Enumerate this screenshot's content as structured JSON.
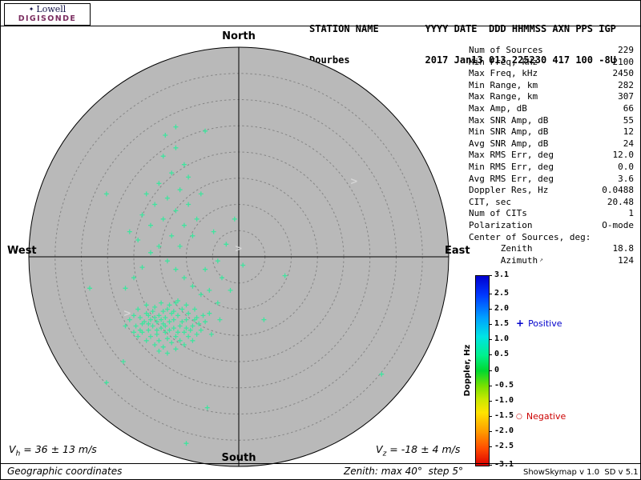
{
  "logo": {
    "name": "Lowell",
    "product": "DIGISONDE",
    "diamond": "✦"
  },
  "header": {
    "columns_line": "STATION NAME        YYYY DATE  DDD HHMMSS AXN PPS IGP",
    "values_line": "Dourbes             2017 Jan13 013 225230 417 100 -8U"
  },
  "compass": {
    "north": "North",
    "south": "South",
    "east": "East",
    "west": "West"
  },
  "stats": {
    "rows": [
      {
        "label": "Num of Sources",
        "value": "229"
      },
      {
        "label": "Min Freq, kHz",
        "value": "2100"
      },
      {
        "label": "Max Freq, kHz",
        "value": "2450"
      },
      {
        "label": "Min Range, km",
        "value": "282"
      },
      {
        "label": "Max Range, km",
        "value": "307"
      },
      {
        "label": "Max Amp, dB",
        "value": "66"
      },
      {
        "label": "Max SNR Amp, dB",
        "value": "55"
      },
      {
        "label": "Min SNR Amp, dB",
        "value": "12"
      },
      {
        "label": "Avg SNR Amp, dB",
        "value": "24"
      },
      {
        "label": "Max RMS Err, deg",
        "value": "12.0"
      },
      {
        "label": "Min RMS Err, deg",
        "value": "0.0"
      },
      {
        "label": "Avg RMS Err, deg",
        "value": "3.6"
      },
      {
        "label": "Doppler Res, Hz",
        "value": "0.0488"
      },
      {
        "label": "CIT, sec",
        "value": "20.48"
      },
      {
        "label": "Num of CITs",
        "value": "1"
      },
      {
        "label": "Polarization",
        "value": "O-mode"
      },
      {
        "label": "Center of Sources, deg:",
        "value": ""
      },
      {
        "label": "      Zenith",
        "value": "18.8"
      },
      {
        "label": "      Azimuth",
        "value": "124",
        "arrow": "↗"
      }
    ]
  },
  "colorbar": {
    "axis_label": "Doppler, Hz",
    "max": 3.1,
    "min": -3.1,
    "ticks": [
      {
        "value": 3.1,
        "label": "3.1"
      },
      {
        "value": 2.5,
        "label": "2.5"
      },
      {
        "value": 2.0,
        "label": "2.0"
      },
      {
        "value": 1.5,
        "label": "1.5"
      },
      {
        "value": 1.0,
        "label": "1.0"
      },
      {
        "value": 0.5,
        "label": "0.5"
      },
      {
        "value": 0.0,
        "label": "0"
      },
      {
        "value": -0.5,
        "label": "-0.5"
      },
      {
        "value": -1.0,
        "label": "-1.0"
      },
      {
        "value": -1.5,
        "label": "-1.5"
      },
      {
        "value": -2.0,
        "label": "-2.0"
      },
      {
        "value": -2.5,
        "label": "-2.5"
      },
      {
        "value": -3.1,
        "label": "-3.1"
      }
    ]
  },
  "legend": {
    "positive_marker": "+",
    "positive_label": "Positive",
    "positive_color": "#0000cc",
    "negative_marker": "○",
    "negative_label": "Negative",
    "negative_color": "#cc0000"
  },
  "footer": {
    "vh_symbol": "V",
    "vh_sub": "h",
    "vh_text": " = 36 ± 13 m/s",
    "vz_symbol": "V",
    "vz_sub": "z",
    "vz_text": " = -18 ± 4 m/s",
    "coordinates": "Geographic coordinates",
    "zenith_note": "Zenith: max 40°  step 5°",
    "credit": "ShowSkymap v 1.0  SD v 5.1"
  },
  "chart_data": {
    "type": "scatter",
    "projection": "polar skymap; points as [x,y] fractions of outer radius, x=east+, y=south+",
    "zenith_rings_deg": [
      5,
      10,
      15,
      20,
      25,
      30,
      35,
      40
    ],
    "zenith_max_deg": 40,
    "zenith_step_deg": 5,
    "doppler_color_range_hz": [
      -3.1,
      3.1
    ],
    "num_sources": 229,
    "center_of_sources": {
      "zenith_deg": 18.8,
      "azimuth_deg": 124
    },
    "marker": "+",
    "marker_color": "#3fe49e",
    "points": [
      [
        -0.3,
        0.22
      ],
      [
        -0.34,
        0.25
      ],
      [
        -0.38,
        0.28
      ],
      [
        -0.42,
        0.3
      ],
      [
        -0.36,
        0.32
      ],
      [
        -0.32,
        0.27
      ],
      [
        -0.4,
        0.24
      ],
      [
        -0.44,
        0.27
      ],
      [
        -0.37,
        0.22
      ],
      [
        -0.33,
        0.31
      ],
      [
        -0.29,
        0.28
      ],
      [
        -0.41,
        0.33
      ],
      [
        -0.45,
        0.31
      ],
      [
        -0.35,
        0.36
      ],
      [
        -0.31,
        0.34
      ],
      [
        -0.39,
        0.37
      ],
      [
        -0.43,
        0.35
      ],
      [
        -0.27,
        0.25
      ],
      [
        -0.25,
        0.3
      ],
      [
        -0.28,
        0.33
      ],
      [
        -0.47,
        0.29
      ],
      [
        -0.49,
        0.33
      ],
      [
        -0.46,
        0.36
      ],
      [
        -0.38,
        0.4
      ],
      [
        -0.34,
        0.39
      ],
      [
        -0.3,
        0.38
      ],
      [
        -0.26,
        0.36
      ],
      [
        -0.22,
        0.33
      ],
      [
        -0.24,
        0.27
      ],
      [
        -0.2,
        0.29
      ],
      [
        -0.36,
        0.26
      ],
      [
        -0.4,
        0.29
      ],
      [
        -0.44,
        0.23
      ],
      [
        -0.48,
        0.25
      ],
      [
        -0.52,
        0.3
      ],
      [
        -0.5,
        0.36
      ],
      [
        -0.42,
        0.38
      ],
      [
        -0.37,
        0.34
      ],
      [
        -0.33,
        0.23
      ],
      [
        -0.29,
        0.21
      ],
      [
        -0.25,
        0.23
      ],
      [
        -0.21,
        0.25
      ],
      [
        -0.35,
        0.29
      ],
      [
        -0.39,
        0.31
      ],
      [
        -0.43,
        0.28
      ],
      [
        -0.31,
        0.3
      ],
      [
        -0.27,
        0.31
      ],
      [
        -0.23,
        0.35
      ],
      [
        -0.19,
        0.32
      ],
      [
        -0.17,
        0.28
      ],
      [
        -0.36,
        0.43
      ],
      [
        -0.32,
        0.41
      ],
      [
        -0.28,
        0.4
      ],
      [
        -0.24,
        0.38
      ],
      [
        -0.4,
        0.42
      ],
      [
        -0.44,
        0.4
      ],
      [
        -0.48,
        0.38
      ],
      [
        -0.3,
        0.44
      ],
      [
        -0.26,
        0.42
      ],
      [
        -0.22,
        0.4
      ],
      [
        -0.34,
        0.46
      ],
      [
        -0.38,
        0.45
      ],
      [
        -0.18,
        0.35
      ],
      [
        -0.16,
        0.31
      ],
      [
        -0.14,
        0.27
      ],
      [
        -0.2,
        0.37
      ],
      [
        -0.46,
        0.32
      ],
      [
        -0.5,
        0.28
      ],
      [
        -0.54,
        0.33
      ],
      [
        -0.41,
        0.26
      ],
      [
        -0.37,
        0.3
      ],
      [
        -0.33,
        0.35
      ],
      [
        -0.29,
        0.36
      ],
      [
        -0.25,
        0.34
      ],
      [
        -0.21,
        0.3
      ],
      [
        -0.35,
        0.33
      ],
      [
        -0.39,
        0.35
      ],
      [
        -0.43,
        0.32
      ],
      [
        -0.47,
        0.35
      ],
      [
        -0.31,
        0.26
      ],
      [
        -0.28,
        -0.05
      ],
      [
        -0.32,
        -0.1
      ],
      [
        -0.26,
        -0.15
      ],
      [
        -0.36,
        -0.18
      ],
      [
        -0.3,
        -0.22
      ],
      [
        -0.24,
        -0.25
      ],
      [
        -0.34,
        -0.28
      ],
      [
        -0.28,
        -0.32
      ],
      [
        -0.38,
        -0.35
      ],
      [
        -0.32,
        -0.4
      ],
      [
        -0.26,
        -0.44
      ],
      [
        -0.36,
        -0.48
      ],
      [
        -0.3,
        -0.52
      ],
      [
        -0.4,
        -0.25
      ],
      [
        -0.44,
        -0.3
      ],
      [
        -0.42,
        -0.15
      ],
      [
        -0.46,
        -0.2
      ],
      [
        -0.22,
        -0.1
      ],
      [
        -0.2,
        -0.18
      ],
      [
        -0.18,
        -0.3
      ],
      [
        -0.24,
        -0.38
      ],
      [
        -0.35,
        -0.58
      ],
      [
        -0.3,
        -0.62
      ],
      [
        -0.48,
        -0.08
      ],
      [
        -0.52,
        -0.12
      ],
      [
        -0.38,
        -0.05
      ],
      [
        -0.42,
        -0.02
      ],
      [
        -0.34,
        0.02
      ],
      [
        -0.3,
        0.06
      ],
      [
        -0.26,
        0.1
      ],
      [
        -0.22,
        0.14
      ],
      [
        -0.18,
        0.18
      ],
      [
        -0.46,
        0.05
      ],
      [
        -0.5,
        0.1
      ],
      [
        -0.54,
        0.15
      ],
      [
        -0.1,
        0.02
      ],
      [
        -0.06,
        -0.06
      ],
      [
        -0.12,
        -0.12
      ],
      [
        -0.08,
        0.1
      ],
      [
        -0.14,
        0.16
      ],
      [
        -0.1,
        0.22
      ],
      [
        -0.04,
        0.16
      ],
      [
        -0.16,
        0.06
      ],
      [
        -0.02,
        -0.18
      ],
      [
        0.02,
        0.04
      ],
      [
        -0.13,
        0.37
      ],
      [
        -0.09,
        0.3
      ],
      [
        0.68,
        0.56
      ],
      [
        -0.63,
        0.6
      ],
      [
        -0.25,
        0.89
      ],
      [
        -0.15,
        0.72
      ],
      [
        -0.55,
        0.5
      ],
      [
        0.12,
        0.3
      ],
      [
        0.22,
        0.09
      ],
      [
        -0.63,
        -0.3
      ],
      [
        -0.71,
        0.15
      ],
      [
        -0.16,
        -0.6
      ]
    ],
    "gray_marks": [
      [
        0.53,
        -0.36
      ],
      [
        -0.02,
        -0.04
      ],
      [
        -0.55,
        0.27
      ]
    ]
  }
}
